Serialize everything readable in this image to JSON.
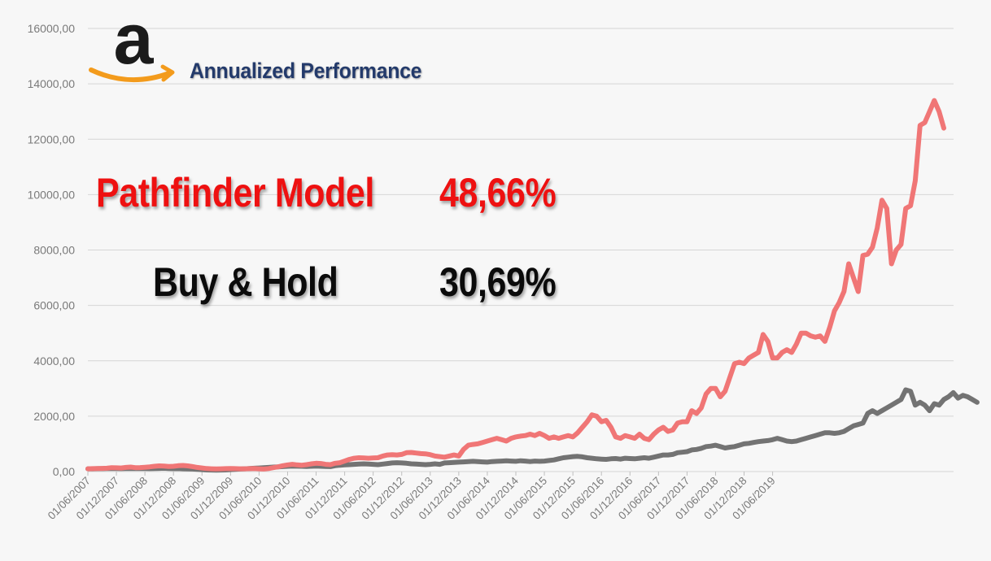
{
  "header": {
    "subtitle": "Annualized Performance",
    "logo_icon": "amazon-logo-icon"
  },
  "annotations": {
    "model_label": "Pathfinder Model",
    "model_value": "48,66%",
    "bh_label": "Buy & Hold",
    "bh_value": "30,69%"
  },
  "colors": {
    "model": "#f07676",
    "buy_hold": "#737373",
    "model_text": "#ee1111",
    "subtitle": "#233a6b",
    "logo_orange": "#f39b1c"
  },
  "chart_data": {
    "type": "line",
    "title": "",
    "xlabel": "",
    "ylabel": "",
    "ylim": [
      0,
      16000
    ],
    "grid": true,
    "y_ticks": [
      "0,00",
      "2000,00",
      "4000,00",
      "6000,00",
      "8000,00",
      "10000,00",
      "12000,00",
      "14000,00",
      "16000,00"
    ],
    "x_ticks": [
      "01/06/2007",
      "01/12/2007",
      "01/06/2008",
      "01/12/2008",
      "01/06/2009",
      "01/12/2009",
      "01/06/2010",
      "01/12/2010",
      "01/06/2011",
      "01/12/2011",
      "01/06/2012",
      "01/12/2012",
      "01/06/2013",
      "01/12/2013",
      "01/06/2014",
      "01/12/2014",
      "01/06/2015",
      "01/12/2015",
      "01/06/2016",
      "01/12/2016",
      "01/06/2017",
      "01/12/2017",
      "01/06/2018",
      "01/12/2018",
      "01/06/2019"
    ],
    "x_start": "2007-06",
    "x_step": "1 month",
    "series": [
      {
        "name": "Pathfinder Model",
        "values": [
          100,
          105,
          110,
          115,
          120,
          140,
          135,
          130,
          150,
          160,
          140,
          145,
          155,
          170,
          190,
          205,
          200,
          185,
          190,
          210,
          220,
          205,
          180,
          150,
          130,
          110,
          100,
          95,
          100,
          105,
          110,
          105,
          100,
          100,
          105,
          110,
          100,
          90,
          110,
          140,
          170,
          210,
          240,
          260,
          240,
          230,
          250,
          280,
          300,
          290,
          260,
          250,
          300,
          320,
          380,
          440,
          480,
          500,
          490,
          480,
          490,
          500,
          560,
          600,
          610,
          600,
          620,
          680,
          690,
          670,
          650,
          640,
          610,
          560,
          540,
          520,
          560,
          600,
          560,
          800,
          950,
          980,
          1000,
          1050,
          1100,
          1150,
          1200,
          1150,
          1100,
          1200,
          1250,
          1280,
          1300,
          1350,
          1300,
          1380,
          1300,
          1200,
          1250,
          1200,
          1250,
          1300,
          1250,
          1400,
          1600,
          1800,
          2050,
          2000,
          1800,
          1850,
          1600,
          1250,
          1200,
          1300,
          1250,
          1200,
          1350,
          1200,
          1150,
          1350,
          1500,
          1600,
          1450,
          1500,
          1750,
          1800,
          1800,
          2200,
          2100,
          2300,
          2800,
          3000,
          3000,
          2700,
          2900,
          3400,
          3900,
          3950,
          3900,
          4100,
          4200,
          4300,
          4950,
          4700,
          4100,
          4100,
          4300,
          4400,
          4300,
          4600,
          5000,
          5000,
          4900,
          4850,
          4900,
          4700,
          5200,
          5800,
          6100,
          6500,
          7500,
          7000,
          6500,
          7800,
          7850,
          8100,
          8800,
          9800,
          9500,
          7500,
          8000,
          8200,
          9500,
          9600,
          10500,
          12500,
          12600,
          13000,
          13400,
          13000,
          12400
        ]
      },
      {
        "name": "Buy & Hold",
        "values": [
          100,
          100,
          105,
          105,
          110,
          115,
          110,
          105,
          110,
          115,
          110,
          110,
          110,
          105,
          110,
          115,
          120,
          110,
          105,
          110,
          100,
          95,
          90,
          80,
          70,
          60,
          55,
          50,
          55,
          60,
          70,
          80,
          90,
          100,
          110,
          120,
          130,
          140,
          150,
          160,
          170,
          180,
          190,
          200,
          195,
          190,
          185,
          190,
          200,
          190,
          185,
          180,
          210,
          230,
          240,
          250,
          260,
          270,
          280,
          270,
          260,
          250,
          270,
          290,
          310,
          320,
          310,
          300,
          280,
          270,
          260,
          250,
          260,
          280,
          260,
          310,
          320,
          330,
          340,
          350,
          360,
          370,
          360,
          350,
          340,
          360,
          370,
          380,
          390,
          380,
          370,
          390,
          380,
          360,
          380,
          370,
          380,
          400,
          420,
          460,
          500,
          520,
          540,
          550,
          530,
          500,
          480,
          460,
          450,
          440,
          460,
          470,
          450,
          480,
          470,
          460,
          480,
          500,
          480,
          520,
          560,
          600,
          600,
          620,
          680,
          700,
          720,
          780,
          800,
          840,
          900,
          920,
          950,
          900,
          850,
          880,
          900,
          950,
          1000,
          1020,
          1050,
          1080,
          1100,
          1120,
          1150,
          1200,
          1150,
          1100,
          1080,
          1100,
          1150,
          1200,
          1250,
          1300,
          1350,
          1400,
          1400,
          1380,
          1400,
          1450,
          1550,
          1650,
          1700,
          1750,
          2100,
          2200,
          2100,
          2200,
          2300,
          2400,
          2500,
          2600,
          2950,
          2900,
          2400,
          2500,
          2400,
          2200,
          2450,
          2400,
          2600,
          2700,
          2850,
          2650,
          2750,
          2700,
          2600,
          2500
        ]
      }
    ]
  }
}
